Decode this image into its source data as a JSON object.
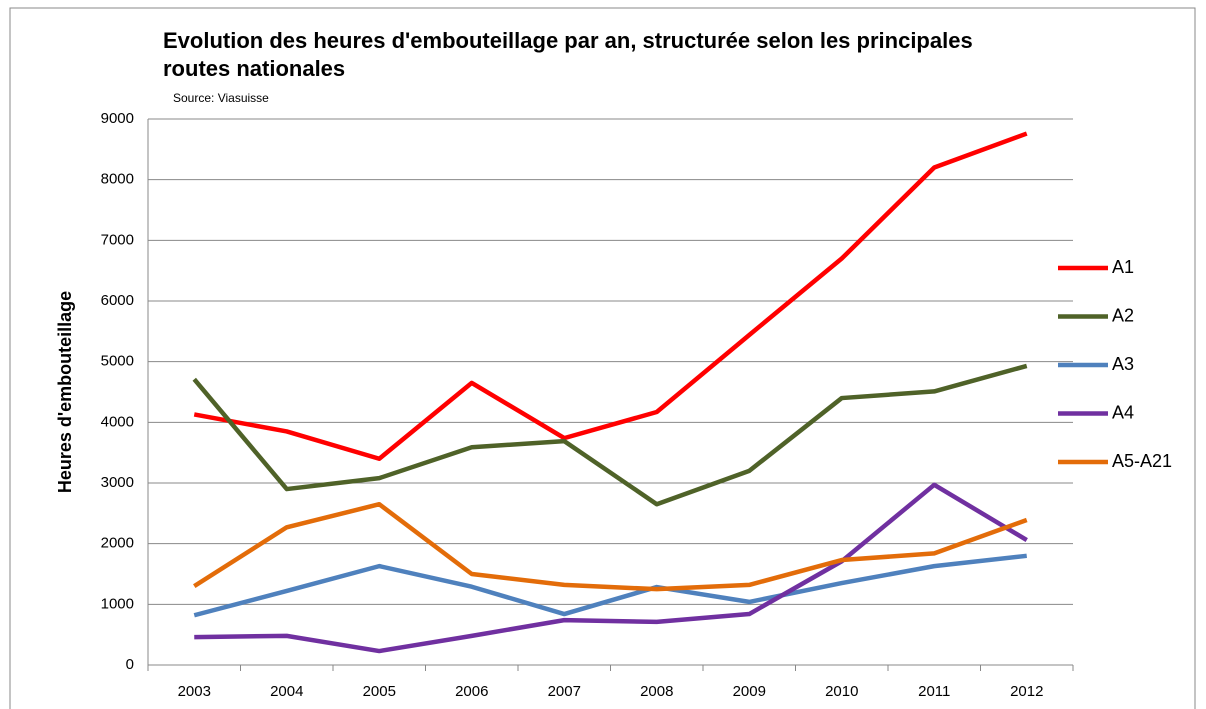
{
  "chart_data": {
    "type": "line",
    "title": "Evolution des heures d'embouteillage par an, structurée selon les principales routes nationales",
    "subtitle": "Source: Viasuisse",
    "y_label": "Heures d'embouteillage",
    "categories": [
      "2003",
      "2004",
      "2005",
      "2006",
      "2007",
      "2008",
      "2009",
      "2010",
      "2011",
      "2012"
    ],
    "series": [
      {
        "name": "A1",
        "color": "#ff0000",
        "values": [
          4130,
          3850,
          3400,
          4650,
          3740,
          4170,
          5440,
          6700,
          8200,
          8760
        ]
      },
      {
        "name": "A2",
        "color": "#4f6228",
        "values": [
          4710,
          2900,
          3080,
          3590,
          3690,
          2650,
          3200,
          4400,
          4510,
          4930
        ]
      },
      {
        "name": "A3",
        "color": "#4f81bd",
        "values": [
          820,
          1220,
          1630,
          1290,
          840,
          1285,
          1040,
          1350,
          1630,
          1800
        ]
      },
      {
        "name": "A4",
        "color": "#7030a0",
        "values": [
          460,
          480,
          230,
          480,
          740,
          710,
          840,
          1710,
          2970,
          2060
        ]
      },
      {
        "name": "A5-A21",
        "color": "#e36c09",
        "values": [
          1300,
          2270,
          2650,
          1500,
          1320,
          1250,
          1320,
          1730,
          1840,
          2390
        ]
      }
    ],
    "ylim": [
      0,
      9000
    ],
    "yticks": [
      0,
      1000,
      2000,
      3000,
      4000,
      5000,
      6000,
      7000,
      8000,
      9000
    ],
    "grid": true,
    "legend": "right"
  }
}
